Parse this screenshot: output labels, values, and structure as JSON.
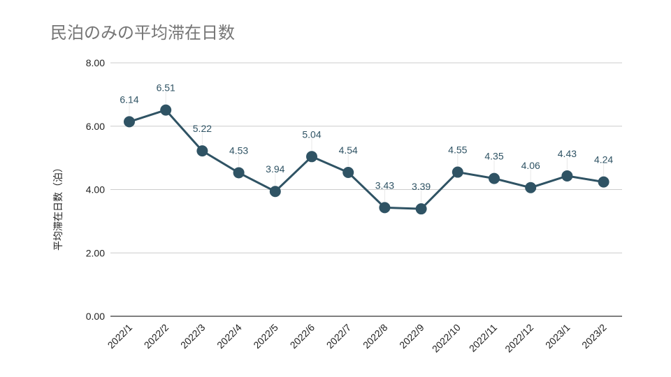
{
  "chart_data": {
    "type": "line",
    "title": "民泊のみの平均滞在日数",
    "xlabel": "",
    "ylabel": "平均滞在日数（泊）",
    "categories": [
      "2022/1",
      "2022/2",
      "2022/3",
      "2022/4",
      "2022/5",
      "2022/6",
      "2022/7",
      "2022/8",
      "2022/9",
      "2022/10",
      "2022/11",
      "2022/12",
      "2023/1",
      "2023/2"
    ],
    "series": [
      {
        "name": "平均滞在日数",
        "values": [
          6.14,
          6.51,
          5.22,
          4.53,
          3.94,
          5.04,
          4.54,
          3.43,
          3.39,
          4.55,
          4.35,
          4.06,
          4.43,
          4.24
        ],
        "labels": [
          "6.14",
          "6.51",
          "5.22",
          "4.53",
          "3.94",
          "5.04",
          "4.54",
          "3.43",
          "3.39",
          "4.55",
          "4.35",
          "4.06",
          "4.43",
          "4.24"
        ],
        "color": "#2f5364"
      }
    ],
    "ylim": [
      0,
      8
    ],
    "yticks": [
      0,
      2,
      4,
      6,
      8
    ],
    "ytick_labels": [
      "0.00",
      "2.00",
      "4.00",
      "6.00",
      "8.00"
    ],
    "grid": true,
    "legend": "none"
  }
}
